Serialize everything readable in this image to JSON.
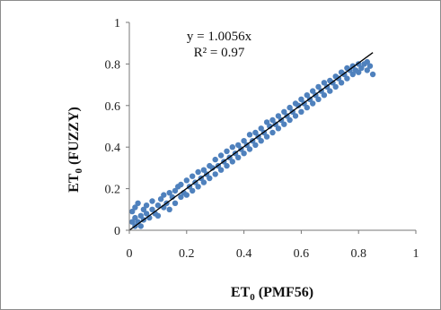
{
  "chart_data": {
    "type": "scatter",
    "xlabel": {
      "base": "ET",
      "sub": "0",
      "rest": " (PMF56)"
    },
    "ylabel": {
      "base": "ET",
      "sub": "0",
      "rest": " (FUZZY)"
    },
    "xlim": [
      0,
      1
    ],
    "ylim": [
      0,
      1
    ],
    "xticks": [
      "0",
      "0.2",
      "0.4",
      "0.6",
      "0.8",
      "1"
    ],
    "yticks": [
      "0",
      "0.2",
      "0.4",
      "0.6",
      "0.8",
      "1"
    ],
    "grid": false,
    "legend": "none",
    "annotation": {
      "equation": "y = 1.0056x",
      "r2": "R² = 0.97"
    },
    "trendline": {
      "slope": 1.0056,
      "intercept": 0,
      "x_range": [
        0,
        0.85
      ]
    },
    "series": [
      {
        "color": "#4f81bd",
        "points": [
          [
            0.01,
            0.04
          ],
          [
            0.01,
            0.09
          ],
          [
            0.02,
            0.02
          ],
          [
            0.02,
            0.06
          ],
          [
            0.02,
            0.11
          ],
          [
            0.03,
            0.04
          ],
          [
            0.03,
            0.13
          ],
          [
            0.04,
            0.07
          ],
          [
            0.04,
            0.02
          ],
          [
            0.05,
            0.1
          ],
          [
            0.05,
            0.05
          ],
          [
            0.06,
            0.08
          ],
          [
            0.06,
            0.12
          ],
          [
            0.07,
            0.06
          ],
          [
            0.08,
            0.1
          ],
          [
            0.08,
            0.14
          ],
          [
            0.09,
            0.08
          ],
          [
            0.1,
            0.12
          ],
          [
            0.1,
            0.07
          ],
          [
            0.11,
            0.15
          ],
          [
            0.12,
            0.11
          ],
          [
            0.12,
            0.17
          ],
          [
            0.13,
            0.13
          ],
          [
            0.14,
            0.18
          ],
          [
            0.14,
            0.1
          ],
          [
            0.15,
            0.16
          ],
          [
            0.16,
            0.19
          ],
          [
            0.16,
            0.13
          ],
          [
            0.17,
            0.21
          ],
          [
            0.18,
            0.16
          ],
          [
            0.18,
            0.22
          ],
          [
            0.19,
            0.18
          ],
          [
            0.2,
            0.24
          ],
          [
            0.2,
            0.17
          ],
          [
            0.21,
            0.21
          ],
          [
            0.22,
            0.26
          ],
          [
            0.22,
            0.19
          ],
          [
            0.23,
            0.23
          ],
          [
            0.24,
            0.28
          ],
          [
            0.24,
            0.21
          ],
          [
            0.25,
            0.25
          ],
          [
            0.26,
            0.29
          ],
          [
            0.26,
            0.23
          ],
          [
            0.27,
            0.27
          ],
          [
            0.28,
            0.31
          ],
          [
            0.28,
            0.25
          ],
          [
            0.29,
            0.3
          ],
          [
            0.3,
            0.34
          ],
          [
            0.3,
            0.27
          ],
          [
            0.31,
            0.31
          ],
          [
            0.32,
            0.36
          ],
          [
            0.32,
            0.29
          ],
          [
            0.33,
            0.33
          ],
          [
            0.34,
            0.38
          ],
          [
            0.34,
            0.31
          ],
          [
            0.35,
            0.35
          ],
          [
            0.36,
            0.4
          ],
          [
            0.36,
            0.33
          ],
          [
            0.37,
            0.37
          ],
          [
            0.38,
            0.41
          ],
          [
            0.38,
            0.35
          ],
          [
            0.39,
            0.39
          ],
          [
            0.4,
            0.43
          ],
          [
            0.4,
            0.37
          ],
          [
            0.41,
            0.41
          ],
          [
            0.42,
            0.46
          ],
          [
            0.42,
            0.39
          ],
          [
            0.43,
            0.43
          ],
          [
            0.44,
            0.47
          ],
          [
            0.44,
            0.41
          ],
          [
            0.45,
            0.45
          ],
          [
            0.46,
            0.49
          ],
          [
            0.46,
            0.43
          ],
          [
            0.47,
            0.47
          ],
          [
            0.48,
            0.52
          ],
          [
            0.48,
            0.45
          ],
          [
            0.49,
            0.5
          ],
          [
            0.5,
            0.53
          ],
          [
            0.5,
            0.47
          ],
          [
            0.51,
            0.51
          ],
          [
            0.52,
            0.55
          ],
          [
            0.52,
            0.49
          ],
          [
            0.53,
            0.53
          ],
          [
            0.54,
            0.57
          ],
          [
            0.54,
            0.51
          ],
          [
            0.55,
            0.55
          ],
          [
            0.56,
            0.59
          ],
          [
            0.56,
            0.53
          ],
          [
            0.57,
            0.57
          ],
          [
            0.58,
            0.61
          ],
          [
            0.58,
            0.55
          ],
          [
            0.59,
            0.6
          ],
          [
            0.6,
            0.63
          ],
          [
            0.6,
            0.57
          ],
          [
            0.61,
            0.61
          ],
          [
            0.62,
            0.65
          ],
          [
            0.62,
            0.59
          ],
          [
            0.63,
            0.63
          ],
          [
            0.64,
            0.67
          ],
          [
            0.64,
            0.61
          ],
          [
            0.65,
            0.65
          ],
          [
            0.66,
            0.69
          ],
          [
            0.66,
            0.63
          ],
          [
            0.67,
            0.67
          ],
          [
            0.68,
            0.71
          ],
          [
            0.68,
            0.65
          ],
          [
            0.69,
            0.69
          ],
          [
            0.7,
            0.72
          ],
          [
            0.7,
            0.67
          ],
          [
            0.71,
            0.71
          ],
          [
            0.72,
            0.74
          ],
          [
            0.72,
            0.69
          ],
          [
            0.73,
            0.73
          ],
          [
            0.74,
            0.76
          ],
          [
            0.74,
            0.71
          ],
          [
            0.75,
            0.75
          ],
          [
            0.76,
            0.78
          ],
          [
            0.76,
            0.73
          ],
          [
            0.77,
            0.77
          ],
          [
            0.78,
            0.79
          ],
          [
            0.78,
            0.75
          ],
          [
            0.79,
            0.77
          ],
          [
            0.8,
            0.8
          ],
          [
            0.8,
            0.76
          ],
          [
            0.81,
            0.78
          ],
          [
            0.82,
            0.8
          ],
          [
            0.83,
            0.77
          ],
          [
            0.84,
            0.79
          ],
          [
            0.85,
            0.75
          ],
          [
            0.83,
            0.81
          ]
        ]
      }
    ]
  }
}
